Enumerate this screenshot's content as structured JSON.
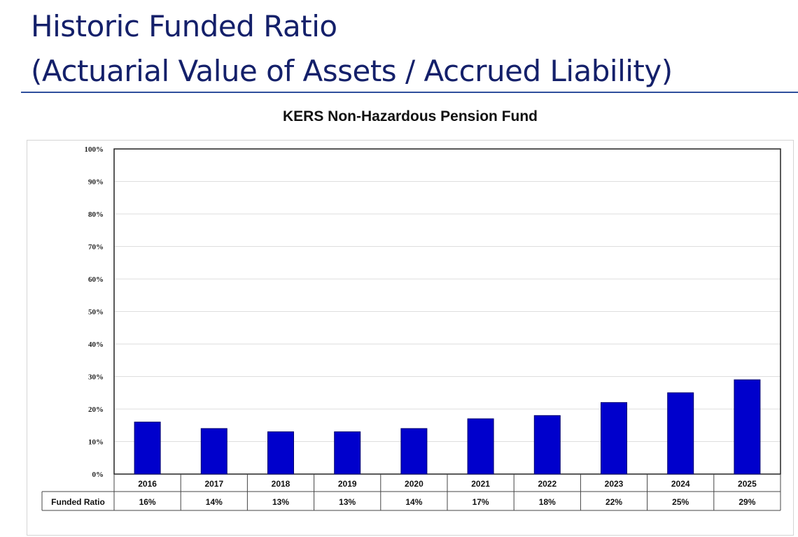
{
  "header": {
    "title_line1": "Historic Funded Ratio",
    "title_line2": "(Actuarial Value of Assets / Accrued Liability)"
  },
  "chart_data": {
    "type": "bar",
    "title": "KERS Non-Hazardous Pension Fund",
    "categories": [
      "2016",
      "2017",
      "2018",
      "2019",
      "2020",
      "2021",
      "2022",
      "2023",
      "2024",
      "2025"
    ],
    "series": [
      {
        "name": "Funded Ratio",
        "values": [
          16,
          14,
          13,
          13,
          14,
          17,
          18,
          22,
          25,
          29
        ]
      }
    ],
    "value_labels": [
      "16%",
      "14%",
      "13%",
      "13%",
      "14%",
      "17%",
      "18%",
      "22%",
      "25%",
      "29%"
    ],
    "ylim": [
      0,
      100
    ],
    "yticks": [
      "0%",
      "10%",
      "20%",
      "30%",
      "40%",
      "50%",
      "60%",
      "70%",
      "80%",
      "90%",
      "100%"
    ],
    "grid": true,
    "legend": "data table below axis",
    "bar_color": "#0000cc"
  }
}
